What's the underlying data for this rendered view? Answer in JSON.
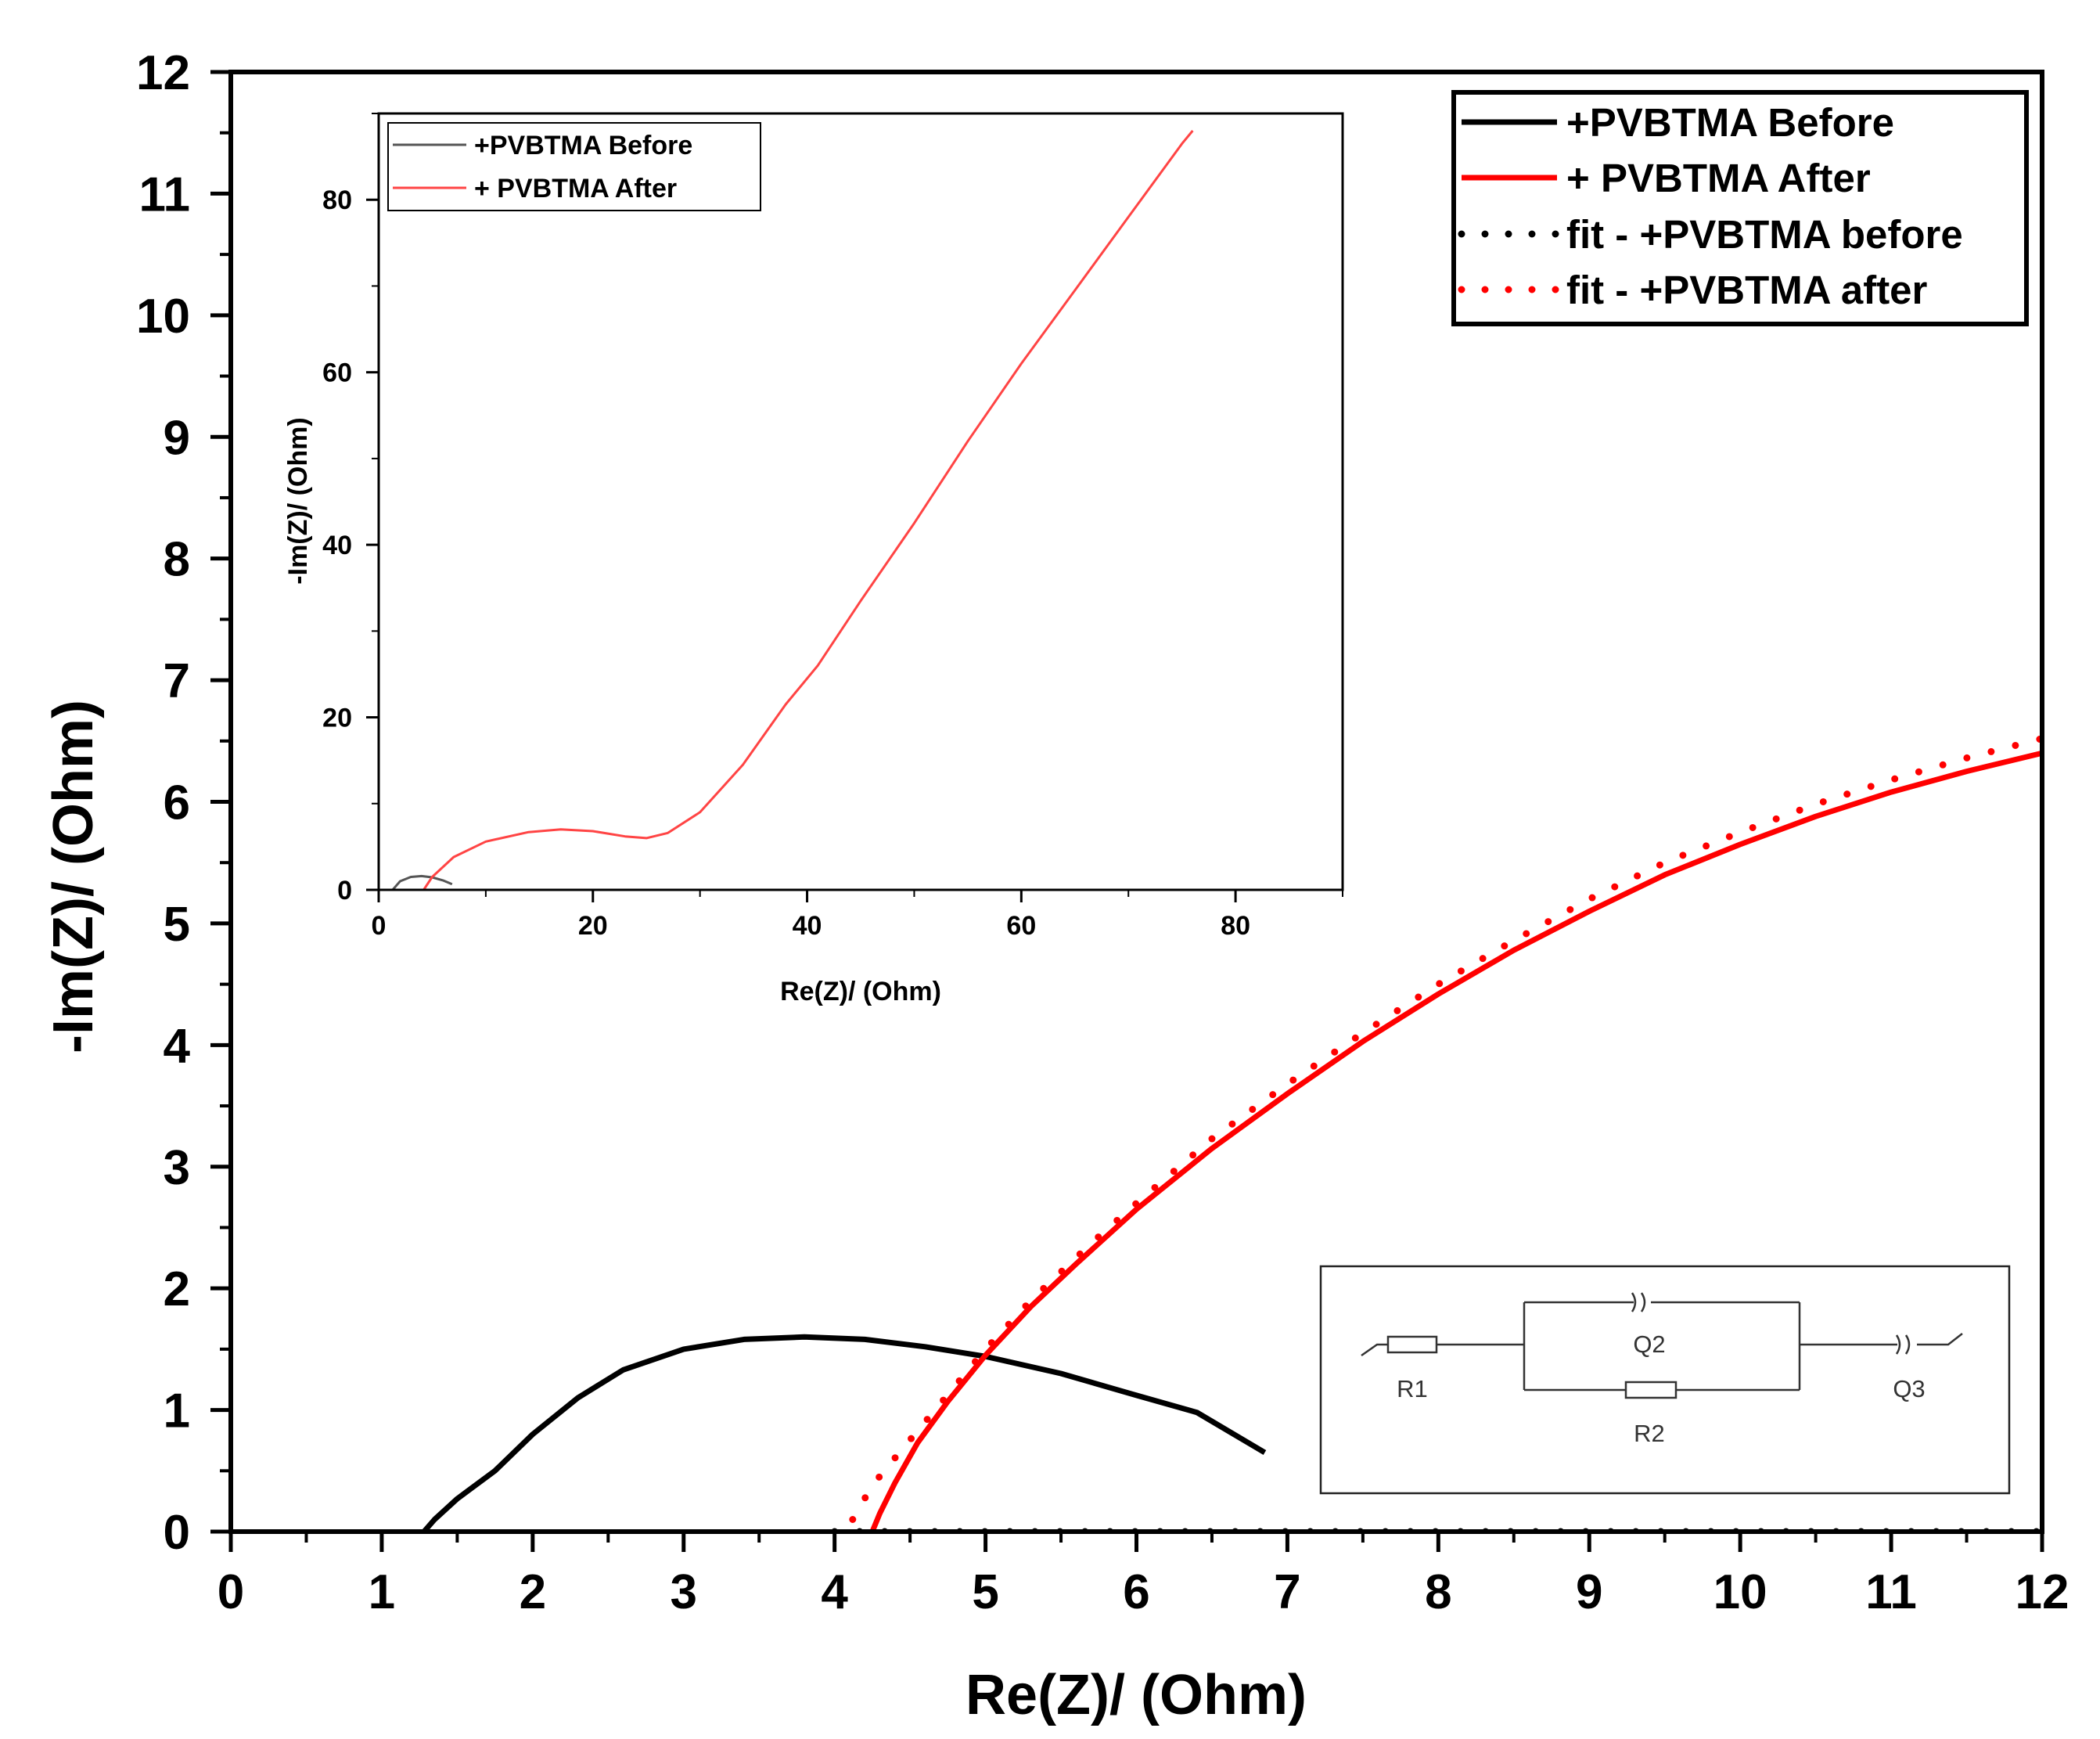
{
  "chart_data": [
    {
      "type": "line",
      "role": "main",
      "xlabel": "Re(Z)/ (Ohm)",
      "ylabel": "-Im(Z)/ (Ohm)",
      "xlim": [
        0,
        12
      ],
      "ylim": [
        0,
        12
      ],
      "xticks": [
        "0",
        "1",
        "2",
        "3",
        "4",
        "5",
        "6",
        "7",
        "8",
        "9",
        "10",
        "11",
        "12"
      ],
      "yticks": [
        "0",
        "1",
        "2",
        "3",
        "4",
        "5",
        "6",
        "7",
        "8",
        "9",
        "10",
        "11",
        "12"
      ],
      "legend_position": "top-right",
      "series": [
        {
          "name": "+PVBTMA Before",
          "color": "#000000",
          "style": "solid",
          "x": [
            1.28,
            1.35,
            1.5,
            1.75,
            2.0,
            2.3,
            2.6,
            3.0,
            3.4,
            3.8,
            4.2,
            4.6,
            5.0,
            5.5,
            6.0,
            6.4,
            6.85
          ],
          "y": [
            0.0,
            0.1,
            0.27,
            0.5,
            0.8,
            1.1,
            1.33,
            1.5,
            1.58,
            1.6,
            1.58,
            1.52,
            1.44,
            1.3,
            1.12,
            0.98,
            0.65
          ]
        },
        {
          "name": "+ PVBTMA After",
          "color": "#ff0000",
          "style": "solid",
          "x": [
            4.25,
            4.3,
            4.4,
            4.55,
            4.75,
            5.0,
            5.3,
            5.6,
            6.0,
            6.5,
            7.0,
            7.5,
            8.0,
            8.5,
            9.0,
            9.5,
            10.0,
            10.5,
            11.0,
            11.5,
            12.0
          ],
          "y": [
            0.0,
            0.15,
            0.4,
            0.73,
            1.07,
            1.45,
            1.85,
            2.2,
            2.65,
            3.15,
            3.6,
            4.03,
            4.42,
            4.78,
            5.1,
            5.4,
            5.65,
            5.88,
            6.08,
            6.25,
            6.4
          ]
        },
        {
          "name": "fit - +PVBTMA before",
          "color": "#000000",
          "style": "dotted",
          "x": [
            4.0,
            5.0,
            6.0,
            7.0,
            8.0,
            9.0,
            10.0,
            11.0,
            12.0
          ],
          "y": [
            0.0,
            0.0,
            0.0,
            0.0,
            0.0,
            0.0,
            0.0,
            0.0,
            0.0
          ]
        },
        {
          "name": "fit - +PVBTMA after",
          "color": "#ff0000",
          "style": "dotted",
          "x": [
            4.12,
            4.25,
            4.45,
            4.7,
            5.0,
            5.3,
            5.7,
            6.0,
            6.5,
            7.0,
            7.5,
            8.0,
            8.5,
            9.0,
            9.5,
            10.0,
            10.5,
            11.0,
            11.5,
            12.0
          ],
          "y": [
            0.1,
            0.38,
            0.68,
            1.05,
            1.5,
            1.9,
            2.37,
            2.7,
            3.23,
            3.68,
            4.1,
            4.5,
            4.86,
            5.2,
            5.5,
            5.75,
            5.98,
            6.18,
            6.36,
            6.52
          ]
        }
      ]
    },
    {
      "type": "line",
      "role": "inset",
      "xlabel": "Re(Z)/ (Ohm)",
      "ylabel": "-Im(Z)/ (Ohm)",
      "xlim": [
        0,
        90
      ],
      "ylim": [
        0,
        90
      ],
      "xticks": [
        "0",
        "20",
        "40",
        "60",
        "80"
      ],
      "yticks": [
        "0",
        "20",
        "40",
        "60",
        "80"
      ],
      "legend_position": "top-left",
      "series": [
        {
          "name": "+PVBTMA Before",
          "color": "#555555",
          "x": [
            1.3,
            2.0,
            3.0,
            4.0,
            5.0,
            6.0,
            6.85
          ],
          "y": [
            0.0,
            1.0,
            1.5,
            1.6,
            1.45,
            1.1,
            0.65
          ]
        },
        {
          "name": "+ PVBTMA After",
          "color": "#ff4444",
          "x": [
            4.2,
            5.0,
            7.0,
            10.0,
            14.0,
            17.0,
            20.0,
            23.0,
            25.0,
            27.0,
            30.0,
            34.0,
            38.0,
            41.0,
            45.0,
            50.0,
            55.0,
            60.0,
            65.0,
            70.0,
            75.0,
            76.0
          ],
          "y": [
            0.0,
            1.5,
            3.8,
            5.6,
            6.7,
            7.0,
            6.8,
            6.2,
            6.0,
            6.6,
            9.0,
            14.5,
            21.5,
            26.0,
            33.5,
            42.5,
            52.0,
            61.0,
            69.5,
            78.0,
            86.5,
            88.0
          ]
        }
      ]
    }
  ],
  "circuit": {
    "elements": [
      "R1",
      "Q2",
      "R2",
      "Q3"
    ]
  }
}
